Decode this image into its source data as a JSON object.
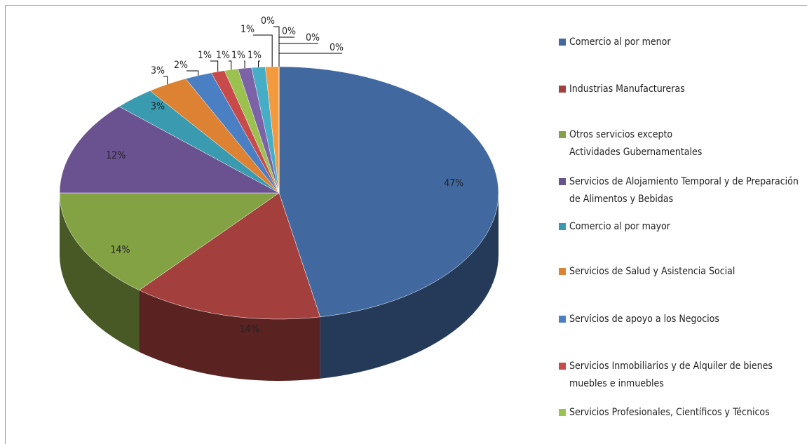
{
  "chart_data": {
    "type": "pie3d",
    "categories": [
      "Comercio al por menor",
      "Industrias Manufactureras",
      "Otros servicios excepto Actividades Gubernamentales",
      "Servicios de Alojamiento Temporal y de Preparación de Alimentos y Bebidas",
      "Comercio al por mayor",
      "Servicios de Salud y Asistencia Social",
      "Servicios de apoyo a los Negocios",
      "Servicios Inmobiliarios y de Alquiler de bienes muebles e inmuebles",
      "Servicios Profesionales, Científicos y Técnicos",
      null,
      null,
      null,
      null,
      null,
      null,
      null
    ],
    "values": [
      47,
      14,
      14,
      12,
      3,
      3,
      2,
      1,
      1,
      1,
      1,
      1,
      0,
      0,
      0,
      0
    ],
    "value_labels": [
      "47%",
      "14%",
      "14%",
      "12%",
      "3%",
      "3%",
      "2%",
      "1%",
      "1%",
      "1%",
      "1%",
      "1%",
      "0%",
      "0%",
      "0%",
      "0%"
    ],
    "colors": [
      "#4169a0",
      "#a33f3d",
      "#83a243",
      "#6a5190",
      "#3a9bb0",
      "#dd8232",
      "#4a7fc4",
      "#c84a4a",
      "#9bc14f",
      "#7c63a8",
      "#46adc6",
      "#f39a3f",
      "#92acd8",
      "#d89d9c",
      "#bcd39c",
      "#b0a6c8"
    ]
  }
}
